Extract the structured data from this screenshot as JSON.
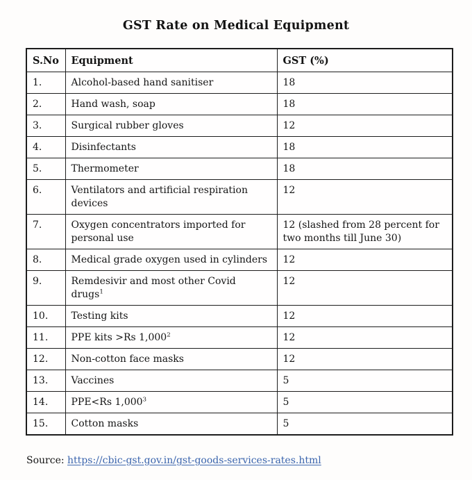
{
  "page": {
    "title": "GST Rate on Medical Equipment",
    "source_label": "Source:",
    "source_url": "https://cbic-gst.gov.in/gst-goods-services-rates.html"
  },
  "table": {
    "columns": [
      "S.No",
      "Equipment",
      "GST (%)"
    ],
    "rows": [
      {
        "sno": "1.",
        "equipment": "Alcohol-based hand sanitiser",
        "superscript": "",
        "gst": "18"
      },
      {
        "sno": "2.",
        "equipment": "Hand wash, soap",
        "superscript": "",
        "gst": "18"
      },
      {
        "sno": "3.",
        "equipment": "Surgical rubber gloves",
        "superscript": "",
        "gst": "12"
      },
      {
        "sno": "4.",
        "equipment": "Disinfectants",
        "superscript": "",
        "gst": "18"
      },
      {
        "sno": "5.",
        "equipment": "Thermometer",
        "superscript": "",
        "gst": "18"
      },
      {
        "sno": "6.",
        "equipment": "Ventilators and artificial respiration devices",
        "superscript": "",
        "gst": "12"
      },
      {
        "sno": "7.",
        "equipment": "Oxygen concentrators imported for personal use",
        "superscript": "",
        "gst": "12 (slashed from 28 percent for two months till June 30)"
      },
      {
        "sno": "8.",
        "equipment": "Medical grade oxygen used in cylinders",
        "superscript": "",
        "gst": "12"
      },
      {
        "sno": "9.",
        "equipment": "Remdesivir and most other Covid drugs",
        "superscript": "1",
        "gst": "12"
      },
      {
        "sno": "10.",
        "equipment": "Testing kits",
        "superscript": "",
        "gst": "12"
      },
      {
        "sno": "11.",
        "equipment": "PPE kits >Rs 1,000",
        "superscript": "2",
        "gst": "12"
      },
      {
        "sno": "12.",
        "equipment": "Non-cotton face masks",
        "superscript": "",
        "gst": "12"
      },
      {
        "sno": "13.",
        "equipment": "Vaccines",
        "superscript": "",
        "gst": "5"
      },
      {
        "sno": "14.",
        "equipment": "PPE<Rs 1,000",
        "superscript": "3",
        "gst": "5"
      },
      {
        "sno": "15.",
        "equipment": "Cotton masks",
        "superscript": "",
        "gst": "5"
      }
    ]
  },
  "colors": {
    "text": "#141414",
    "border": "#1c1c1c",
    "link": "#3a64ad",
    "background": "#fefdfc"
  }
}
